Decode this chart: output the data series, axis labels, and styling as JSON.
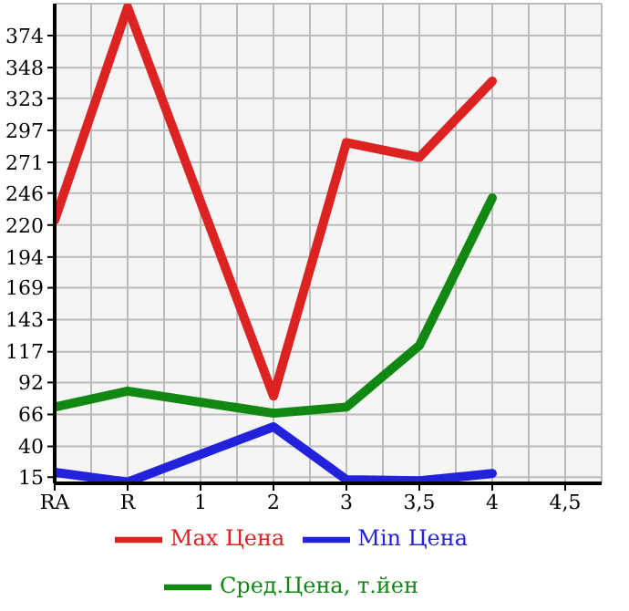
{
  "chart_data": {
    "type": "line",
    "categories": [
      "RA",
      "R",
      "1",
      "2",
      "3",
      "3,5",
      "4",
      "4,5"
    ],
    "series": [
      {
        "name": "Max Цена",
        "color": "#dd2222",
        "values": [
          224,
          397,
          null,
          81,
          287,
          275,
          337,
          null
        ]
      },
      {
        "name": "Min Цена",
        "color": "#2222dd",
        "values": [
          19,
          11,
          null,
          56,
          13,
          12,
          18,
          null
        ]
      },
      {
        "name": "Сред.Цена, т.йен",
        "color": "#118811",
        "values": [
          72,
          85,
          null,
          67,
          72,
          122,
          242,
          null
        ]
      }
    ],
    "ylim": [
      10,
      400
    ],
    "yticks": [
      15,
      40,
      66,
      92,
      117,
      143,
      169,
      194,
      220,
      246,
      271,
      297,
      323,
      348,
      374
    ],
    "grid": true,
    "legend": "bottom",
    "marker": "none",
    "line_style": "solid"
  }
}
